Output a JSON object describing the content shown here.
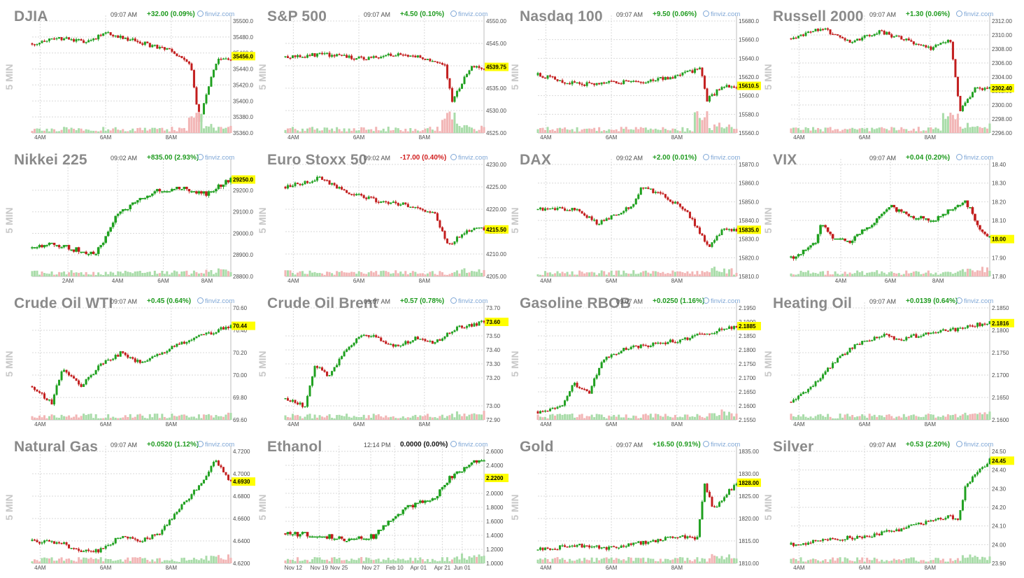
{
  "colors": {
    "up": "#1fa01f",
    "down": "#c21d1d",
    "vol_up": "#a9dca9",
    "vol_down": "#f2b5b5",
    "grid": "#d9d9d9",
    "axis_text": "#4d4d4d",
    "title": "#8a8a8a",
    "last_bg": "#ffff00",
    "chg_up": "#1f9b1f",
    "chg_down": "#d11f1f",
    "chg_flat": "#111111",
    "watermark": "#c8c8c8"
  },
  "panel_ylabel": "5 MIN",
  "source_label": "finviz.com",
  "source_icon": "finviz-globe-icon",
  "chart_data": [
    {
      "type": "candlestick",
      "title": "DJIA",
      "time": "09:07 AM",
      "change": "+32.00 (0.09%)",
      "change_dir": "up",
      "last": "35456.0",
      "yticks": [
        "35500.0",
        "35480.0",
        "35460.0",
        "35440.0",
        "35420.0",
        "35400.0",
        "35380.0",
        "35360.0"
      ],
      "ylim": [
        35360,
        35500
      ],
      "xticks": [
        {
          "pos": 0.04,
          "label": "4AM"
        },
        {
          "pos": 0.37,
          "label": "6AM"
        },
        {
          "pos": 0.7,
          "label": "8AM"
        }
      ],
      "pattern": "drop",
      "anchors": [
        [
          0,
          35472
        ],
        [
          0.15,
          35478
        ],
        [
          0.25,
          35474
        ],
        [
          0.38,
          35484
        ],
        [
          0.55,
          35473
        ],
        [
          0.7,
          35462
        ],
        [
          0.8,
          35445
        ],
        [
          0.84,
          35375
        ],
        [
          0.93,
          35452
        ]
      ],
      "x_spike": 0.82
    },
    {
      "type": "candlestick",
      "title": "S&P 500",
      "time": "09:07 AM",
      "change": "+4.50 (0.10%)",
      "change_dir": "up",
      "last": "4539.75",
      "yticks": [
        "4550.00",
        "4545.00",
        "4540.00",
        "4535.00",
        "4530.00",
        "4525.00"
      ],
      "ylim": [
        4525,
        4550
      ],
      "xticks": [
        {
          "pos": 0.04,
          "label": "4AM"
        },
        {
          "pos": 0.37,
          "label": "6AM"
        },
        {
          "pos": 0.7,
          "label": "8AM"
        }
      ],
      "pattern": "drop",
      "anchors": [
        [
          0,
          4542
        ],
        [
          0.2,
          4542.5
        ],
        [
          0.4,
          4541.5
        ],
        [
          0.55,
          4542.6
        ],
        [
          0.7,
          4541.7
        ],
        [
          0.8,
          4540.5
        ],
        [
          0.84,
          4532
        ],
        [
          0.93,
          4539.5
        ]
      ],
      "x_spike": 0.82
    },
    {
      "type": "candlestick",
      "title": "Nasdaq 100",
      "time": "09:07 AM",
      "change": "+9.50 (0.06%)",
      "change_dir": "up",
      "last": "15610.5",
      "yticks": [
        "15680.0",
        "15660.0",
        "15640.0",
        "15620.0",
        "15600.0",
        "15580.0",
        "15560.0"
      ],
      "ylim": [
        15560,
        15680
      ],
      "xticks": [
        {
          "pos": 0.04,
          "label": "4AM"
        },
        {
          "pos": 0.37,
          "label": "6AM"
        },
        {
          "pos": 0.7,
          "label": "8AM"
        }
      ],
      "pattern": "drop",
      "anchors": [
        [
          0,
          15622
        ],
        [
          0.2,
          15612
        ],
        [
          0.4,
          15614
        ],
        [
          0.55,
          15616
        ],
        [
          0.72,
          15622
        ],
        [
          0.82,
          15630
        ],
        [
          0.85,
          15595
        ],
        [
          0.93,
          15610
        ]
      ],
      "x_spike": 0.82
    },
    {
      "type": "candlestick",
      "title": "Russell 2000",
      "time": "09:07 AM",
      "change": "+1.30 (0.06%)",
      "change_dir": "up",
      "last": "2302.40",
      "yticks": [
        "2312.00",
        "2310.00",
        "2308.00",
        "2306.00",
        "2304.00",
        "2302.00",
        "2300.00",
        "2298.00",
        "2296.00"
      ],
      "ylim": [
        2296,
        2312
      ],
      "xticks": [
        {
          "pos": 0.04,
          "label": "4AM"
        },
        {
          "pos": 0.37,
          "label": "6AM"
        },
        {
          "pos": 0.7,
          "label": "8AM"
        }
      ],
      "pattern": "drop",
      "anchors": [
        [
          0,
          2309.5
        ],
        [
          0.15,
          2311
        ],
        [
          0.3,
          2309
        ],
        [
          0.45,
          2310.5
        ],
        [
          0.6,
          2309
        ],
        [
          0.7,
          2308
        ],
        [
          0.8,
          2309.5
        ],
        [
          0.85,
          2299
        ],
        [
          0.93,
          2302.4
        ]
      ],
      "x_spike": 0.8
    },
    {
      "type": "candlestick",
      "title": "Nikkei 225",
      "time": "09:02 AM",
      "change": "+835.00 (2.93%)",
      "change_dir": "up",
      "last": "29250.0",
      "yticks": [
        "29200.0",
        "29100.0",
        "29000.0",
        "28900.0",
        "28800.0"
      ],
      "ylim": [
        28800,
        29320
      ],
      "xticks": [
        {
          "pos": 0.18,
          "label": "2AM"
        },
        {
          "pos": 0.43,
          "label": "4AM"
        },
        {
          "pos": 0.66,
          "label": "6AM"
        },
        {
          "pos": 0.88,
          "label": "8AM"
        }
      ],
      "pattern": "steps",
      "anchors": [
        [
          0,
          28930
        ],
        [
          0.1,
          28950
        ],
        [
          0.32,
          28900
        ],
        [
          0.36,
          28960
        ],
        [
          0.42,
          29080
        ],
        [
          0.5,
          29130
        ],
        [
          0.62,
          29190
        ],
        [
          0.75,
          29210
        ],
        [
          0.88,
          29180
        ],
        [
          1.0,
          29250
        ]
      ]
    },
    {
      "type": "candlestick",
      "title": "Euro Stoxx 50",
      "time": "09:02 AM",
      "change": "-17.00 (0.40%)",
      "change_dir": "down",
      "last": "4215.50",
      "yticks": [
        "4230.00",
        "4225.00",
        "4220.00",
        "4215.00",
        "4210.00",
        "4205.00"
      ],
      "ylim": [
        4205,
        4230
      ],
      "xticks": [
        {
          "pos": 0.04,
          "label": "4AM"
        },
        {
          "pos": 0.37,
          "label": "6AM"
        },
        {
          "pos": 0.7,
          "label": "8AM"
        }
      ],
      "pattern": "trend",
      "anchors": [
        [
          0,
          4225
        ],
        [
          0.18,
          4227
        ],
        [
          0.3,
          4224
        ],
        [
          0.45,
          4222
        ],
        [
          0.6,
          4221
        ],
        [
          0.75,
          4219
        ],
        [
          0.82,
          4212
        ],
        [
          0.93,
          4215.5
        ]
      ]
    },
    {
      "type": "candlestick",
      "title": "DAX",
      "time": "09:02 AM",
      "change": "+2.00 (0.01%)",
      "change_dir": "up",
      "last": "15835.0",
      "yticks": [
        "15870.0",
        "15860.0",
        "15850.0",
        "15840.0",
        "15830.0",
        "15820.0",
        "15810.0"
      ],
      "ylim": [
        15810,
        15870
      ],
      "xticks": [
        {
          "pos": 0.04,
          "label": "4AM"
        },
        {
          "pos": 0.37,
          "label": "6AM"
        },
        {
          "pos": 0.7,
          "label": "8AM"
        }
      ],
      "pattern": "trend",
      "anchors": [
        [
          0,
          15846
        ],
        [
          0.2,
          15846
        ],
        [
          0.3,
          15838
        ],
        [
          0.48,
          15848
        ],
        [
          0.52,
          15858
        ],
        [
          0.62,
          15854
        ],
        [
          0.75,
          15845
        ],
        [
          0.82,
          15832
        ],
        [
          0.86,
          15826
        ],
        [
          0.93,
          15835
        ]
      ]
    },
    {
      "type": "candlestick",
      "title": "VIX",
      "time": "09:07 AM",
      "change": "+0.04 (0.20%)",
      "change_dir": "up",
      "last": "18.00",
      "yticks": [
        "18.40",
        "18.30",
        "18.20",
        "18.10",
        "18.00",
        "17.90",
        "17.80"
      ],
      "ylim": [
        17.8,
        18.4
      ],
      "xticks": [
        {
          "pos": 0.25,
          "label": "4AM"
        },
        {
          "pos": 0.5,
          "label": "6AM"
        },
        {
          "pos": 0.74,
          "label": "8AM"
        }
      ],
      "pattern": "steps",
      "anchors": [
        [
          0,
          17.9
        ],
        [
          0.12,
          17.97
        ],
        [
          0.15,
          18.08
        ],
        [
          0.22,
          18.0
        ],
        [
          0.3,
          17.99
        ],
        [
          0.4,
          18.07
        ],
        [
          0.5,
          18.17
        ],
        [
          0.6,
          18.12
        ],
        [
          0.72,
          18.1
        ],
        [
          0.82,
          18.16
        ],
        [
          0.88,
          18.2
        ],
        [
          0.95,
          18.05
        ],
        [
          1.0,
          18.0
        ]
      ]
    },
    {
      "type": "candlestick",
      "title": "Crude Oil WTI",
      "time": "09:07 AM",
      "change": "+0.45 (0.64%)",
      "change_dir": "up",
      "last": "70.44",
      "yticks": [
        "70.60",
        "70.40",
        "70.20",
        "70.00",
        "69.80",
        "69.60"
      ],
      "ylim": [
        69.6,
        70.6
      ],
      "xticks": [
        {
          "pos": 0.04,
          "label": "4AM"
        },
        {
          "pos": 0.37,
          "label": "6AM"
        },
        {
          "pos": 0.7,
          "label": "8AM"
        }
      ],
      "pattern": "trend",
      "anchors": [
        [
          0,
          69.9
        ],
        [
          0.1,
          69.75
        ],
        [
          0.15,
          70.05
        ],
        [
          0.25,
          69.9
        ],
        [
          0.35,
          70.1
        ],
        [
          0.45,
          70.2
        ],
        [
          0.55,
          70.1
        ],
        [
          0.65,
          70.2
        ],
        [
          0.75,
          70.28
        ],
        [
          0.85,
          70.35
        ],
        [
          1.0,
          70.44
        ]
      ]
    },
    {
      "type": "candlestick",
      "title": "Crude Oil Brent",
      "time": "09:07 AM",
      "change": "+0.57 (0.78%)",
      "change_dir": "up",
      "last": "73.60",
      "yticks": [
        "73.70",
        "73.50",
        "73.40",
        "73.30",
        "73.20",
        "73.00",
        "72.90"
      ],
      "ylim": [
        72.9,
        73.7
      ],
      "xticks": [
        {
          "pos": 0.04,
          "label": "4AM"
        },
        {
          "pos": 0.37,
          "label": "6AM"
        },
        {
          "pos": 0.7,
          "label": "8AM"
        }
      ],
      "pattern": "trend",
      "anchors": [
        [
          0,
          73.05
        ],
        [
          0.1,
          73.0
        ],
        [
          0.15,
          73.3
        ],
        [
          0.22,
          73.2
        ],
        [
          0.3,
          73.4
        ],
        [
          0.4,
          73.52
        ],
        [
          0.55,
          73.42
        ],
        [
          0.65,
          73.48
        ],
        [
          0.75,
          73.45
        ],
        [
          0.85,
          73.55
        ],
        [
          1.0,
          73.6
        ]
      ]
    },
    {
      "type": "candlestick",
      "title": "Gasoline RBOB",
      "time": "09:07 AM",
      "change": "+0.0250 (1.16%)",
      "change_dir": "up",
      "last": "2.1885",
      "yticks": [
        "2.1950",
        "2.1900",
        "2.1850",
        "2.1800",
        "2.1750",
        "2.1700",
        "2.1650",
        "2.1600",
        "2.1550"
      ],
      "ylim": [
        2.155,
        2.195
      ],
      "xticks": [
        {
          "pos": 0.04,
          "label": "4AM"
        },
        {
          "pos": 0.37,
          "label": "6AM"
        },
        {
          "pos": 0.7,
          "label": "8AM"
        }
      ],
      "pattern": "trend",
      "anchors": [
        [
          0,
          2.158
        ],
        [
          0.12,
          2.16
        ],
        [
          0.18,
          2.168
        ],
        [
          0.26,
          2.165
        ],
        [
          0.32,
          2.176
        ],
        [
          0.45,
          2.181
        ],
        [
          0.6,
          2.182
        ],
        [
          0.75,
          2.184
        ],
        [
          0.85,
          2.186
        ],
        [
          1.0,
          2.1885
        ]
      ]
    },
    {
      "type": "candlestick",
      "title": "Heating Oil",
      "time": "09:07 AM",
      "change": "+0.0139 (0.64%)",
      "change_dir": "up",
      "last": "2.1816",
      "yticks": [
        "2.1850",
        "2.1800",
        "2.1750",
        "2.1700",
        "2.1650",
        "2.1600"
      ],
      "ylim": [
        2.16,
        2.185
      ],
      "xticks": [
        {
          "pos": 0.04,
          "label": "4AM"
        },
        {
          "pos": 0.37,
          "label": "6AM"
        },
        {
          "pos": 0.7,
          "label": "8AM"
        }
      ],
      "pattern": "trend",
      "anchors": [
        [
          0,
          2.164
        ],
        [
          0.12,
          2.168
        ],
        [
          0.2,
          2.172
        ],
        [
          0.3,
          2.176
        ],
        [
          0.45,
          2.179
        ],
        [
          0.55,
          2.178
        ],
        [
          0.65,
          2.179
        ],
        [
          0.8,
          2.18
        ],
        [
          0.9,
          2.181
        ],
        [
          1.0,
          2.1816
        ]
      ]
    },
    {
      "type": "candlestick",
      "title": "Natural Gas",
      "time": "09:07 AM",
      "change": "+0.0520 (1.12%)",
      "change_dir": "up",
      "last": "4.6930",
      "yticks": [
        "4.7200",
        "4.7000",
        "4.6800",
        "4.6600",
        "4.6400",
        "4.6200"
      ],
      "ylim": [
        4.62,
        4.72
      ],
      "xticks": [
        {
          "pos": 0.04,
          "label": "4AM"
        },
        {
          "pos": 0.37,
          "label": "6AM"
        },
        {
          "pos": 0.7,
          "label": "8AM"
        }
      ],
      "pattern": "trend",
      "anchors": [
        [
          0,
          4.64
        ],
        [
          0.15,
          4.638
        ],
        [
          0.25,
          4.63
        ],
        [
          0.35,
          4.632
        ],
        [
          0.45,
          4.645
        ],
        [
          0.55,
          4.64
        ],
        [
          0.65,
          4.648
        ],
        [
          0.75,
          4.672
        ],
        [
          0.85,
          4.69
        ],
        [
          0.92,
          4.712
        ],
        [
          1.0,
          4.693
        ]
      ]
    },
    {
      "type": "line",
      "title": "Ethanol",
      "time": "12:14 PM",
      "change": "0.0000 (0.00%)",
      "change_dir": "flat",
      "last": "2.2200",
      "yticks": [
        "2.6000",
        "2.4000",
        "2.2000",
        "2.0000",
        "1.8000",
        "1.6000",
        "1.4000",
        "1.2000",
        "1.0000"
      ],
      "ylim": [
        1.0,
        2.6
      ],
      "xticks": [
        {
          "pos": 0.04,
          "label": "Nov 12"
        },
        {
          "pos": 0.17,
          "label": "Nov 19"
        },
        {
          "pos": 0.27,
          "label": "Nov 25"
        },
        {
          "pos": 0.43,
          "label": "Nov 27"
        },
        {
          "pos": 0.55,
          "label": "Feb 10"
        },
        {
          "pos": 0.67,
          "label": "Apr 01"
        },
        {
          "pos": 0.79,
          "label": "Apr 21"
        },
        {
          "pos": 0.89,
          "label": "Jun 01"
        }
      ],
      "pattern": "steps",
      "anchors": [
        [
          0,
          1.42
        ],
        [
          0.2,
          1.38
        ],
        [
          0.32,
          1.34
        ],
        [
          0.45,
          1.38
        ],
        [
          0.5,
          1.55
        ],
        [
          0.58,
          1.72
        ],
        [
          0.65,
          1.85
        ],
        [
          0.75,
          1.92
        ],
        [
          0.82,
          2.2
        ],
        [
          0.95,
          2.45
        ]
      ]
    },
    {
      "type": "candlestick",
      "title": "Gold",
      "time": "09:07 AM",
      "change": "+16.50 (0.91%)",
      "change_dir": "up",
      "last": "1828.00",
      "yticks": [
        "1835.00",
        "1830.00",
        "1825.00",
        "1820.00",
        "1815.00",
        "1810.00"
      ],
      "ylim": [
        1810,
        1835
      ],
      "xticks": [
        {
          "pos": 0.04,
          "label": "4AM"
        },
        {
          "pos": 0.37,
          "label": "6AM"
        },
        {
          "pos": 0.7,
          "label": "8AM"
        }
      ],
      "pattern": "trend",
      "anchors": [
        [
          0,
          1813
        ],
        [
          0.2,
          1814
        ],
        [
          0.35,
          1813.5
        ],
        [
          0.5,
          1814.5
        ],
        [
          0.6,
          1815
        ],
        [
          0.7,
          1816
        ],
        [
          0.8,
          1815.5
        ],
        [
          0.84,
          1828
        ],
        [
          0.88,
          1822
        ],
        [
          1.0,
          1828
        ]
      ]
    },
    {
      "type": "candlestick",
      "title": "Silver",
      "time": "09:07 AM",
      "change": "+0.53 (2.20%)",
      "change_dir": "up",
      "last": "24.45",
      "yticks": [
        "24.50",
        "24.40",
        "24.30",
        "24.20",
        "24.10",
        "24.00",
        "23.90"
      ],
      "ylim": [
        23.9,
        24.5
      ],
      "xticks": [
        {
          "pos": 0.04,
          "label": "4AM"
        },
        {
          "pos": 0.37,
          "label": "6AM"
        },
        {
          "pos": 0.7,
          "label": "8AM"
        }
      ],
      "pattern": "trend",
      "anchors": [
        [
          0,
          24.0
        ],
        [
          0.2,
          24.03
        ],
        [
          0.35,
          24.04
        ],
        [
          0.5,
          24.07
        ],
        [
          0.65,
          24.11
        ],
        [
          0.8,
          24.15
        ],
        [
          0.84,
          24.13
        ],
        [
          0.88,
          24.32
        ],
        [
          1.0,
          24.45
        ]
      ]
    }
  ]
}
